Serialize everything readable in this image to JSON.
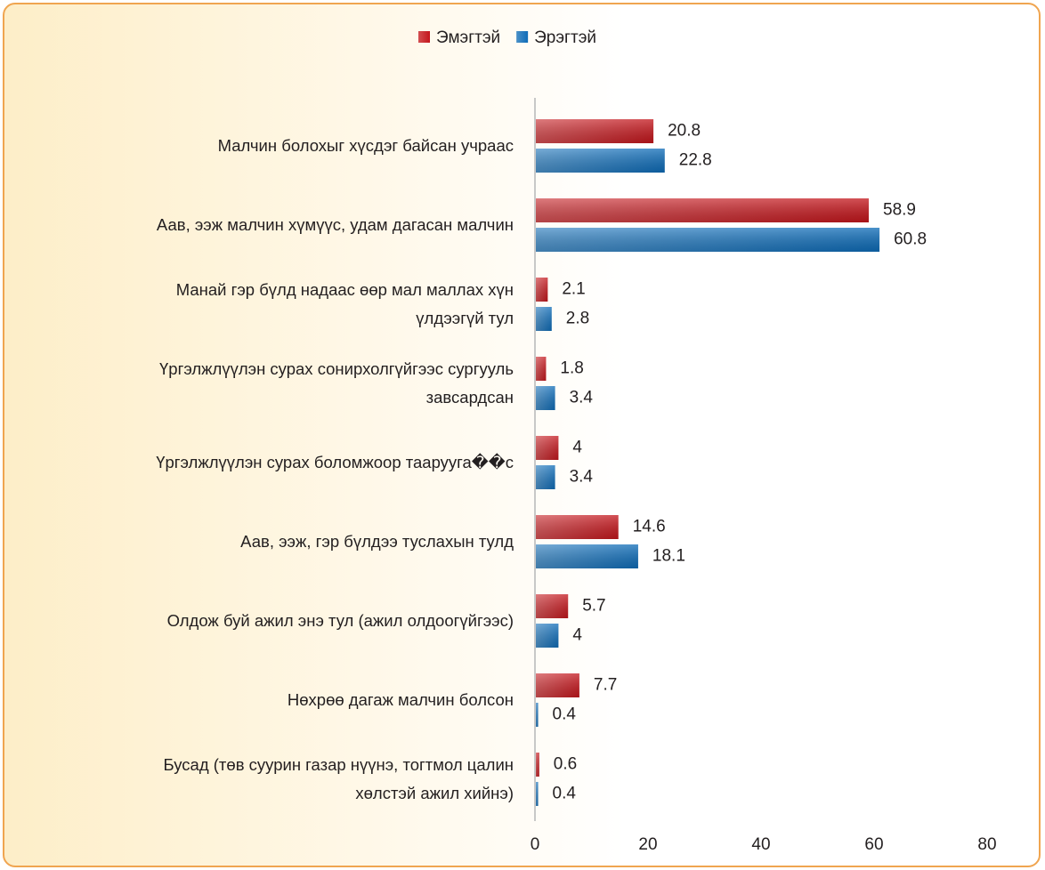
{
  "chart_data": {
    "type": "bar",
    "orientation": "horizontal",
    "categories": [
      "Малчин болохыг хүсдэг байсан учраас",
      "Аав, ээж малчин хүмүүс, удам дагасан малчин",
      "Манай гэр бүлд надаас өөр мал маллах хүн\nүлдээгүй тул",
      "Үргэлжлүүлэн сурах сонирхолгүйгээс сургууль\nзавсардсан",
      "Үргэлжлүүлэн сурах боломжоор таарууга��с",
      "Аав, ээж, гэр бүлдээ туслахын тулд",
      "Олдож буй ажил энэ тул (ажил олдоогүйгээс)",
      "Нөхрөө дагаж малчин болсон",
      "Бусад (төв суурин газар нүүнэ, тогтмол цалин\nхөлстэй ажил хийнэ)"
    ],
    "series": [
      {
        "name": "Эмэгтэй",
        "color": "#c4161c",
        "values": [
          20.8,
          58.9,
          2.1,
          1.8,
          4,
          14.6,
          5.7,
          7.7,
          0.6
        ]
      },
      {
        "name": "Эрэгтэй",
        "color": "#0e6cb8",
        "values": [
          22.8,
          60.8,
          2.8,
          3.4,
          3.4,
          18.1,
          4,
          0.4,
          0.4
        ]
      }
    ],
    "xlim": [
      0,
      80
    ],
    "xticks": [
      0,
      20,
      40,
      60,
      80
    ],
    "legend": "top"
  }
}
